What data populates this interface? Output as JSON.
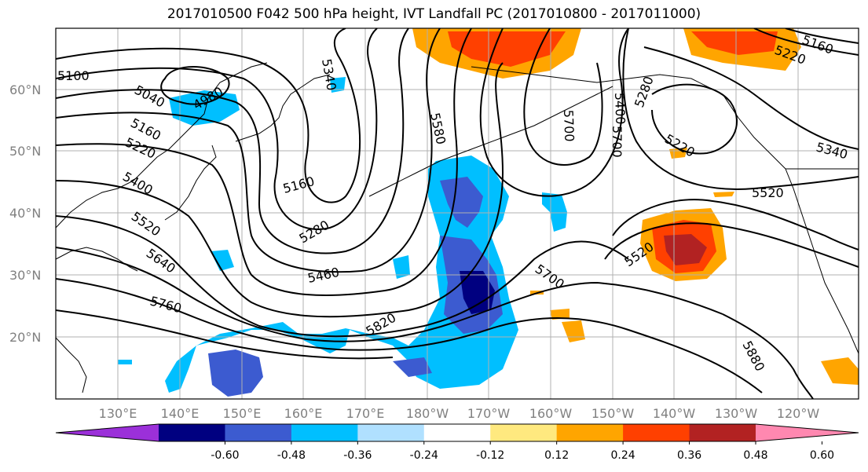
{
  "title": "2017010500 F042 500 hPa height, IVT Landfall PC (2017010800 - 2017011000)",
  "map": {
    "lat_labels": [
      "60°N",
      "50°N",
      "40°N",
      "30°N",
      "20°N"
    ],
    "lon_labels": [
      "130°E",
      "140°E",
      "150°E",
      "160°E",
      "170°E",
      "180°W",
      "170°W",
      "160°W",
      "150°W",
      "140°W",
      "130°W",
      "120°W"
    ],
    "contour_labels": [
      "5100",
      "5040",
      "4980",
      "5160",
      "5220",
      "5400",
      "5520",
      "5640",
      "5760",
      "5160",
      "5280",
      "5460",
      "5340",
      "5580",
      "5820",
      "5700",
      "5700",
      "5400",
      "5280",
      "5220",
      "5520",
      "5520",
      "5700",
      "5880",
      "5340",
      "5220",
      "5160"
    ],
    "colors": {
      "coast": "#000000",
      "grid": "#b0b0b0",
      "contour": "#000000"
    }
  },
  "colorbar": {
    "colors": [
      "#9b30d9",
      "#000080",
      "#3c5bd0",
      "#00bfff",
      "#b0e0ff",
      "#ffffff",
      "#ffe97f",
      "#ffa500",
      "#ff4000",
      "#b22222",
      "#ff88b0"
    ],
    "tick_labels": [
      "-0.60",
      "-0.48",
      "-0.36",
      "-0.24",
      "-0.12",
      "0.12",
      "0.24",
      "0.36",
      "0.48",
      "0.60"
    ]
  }
}
